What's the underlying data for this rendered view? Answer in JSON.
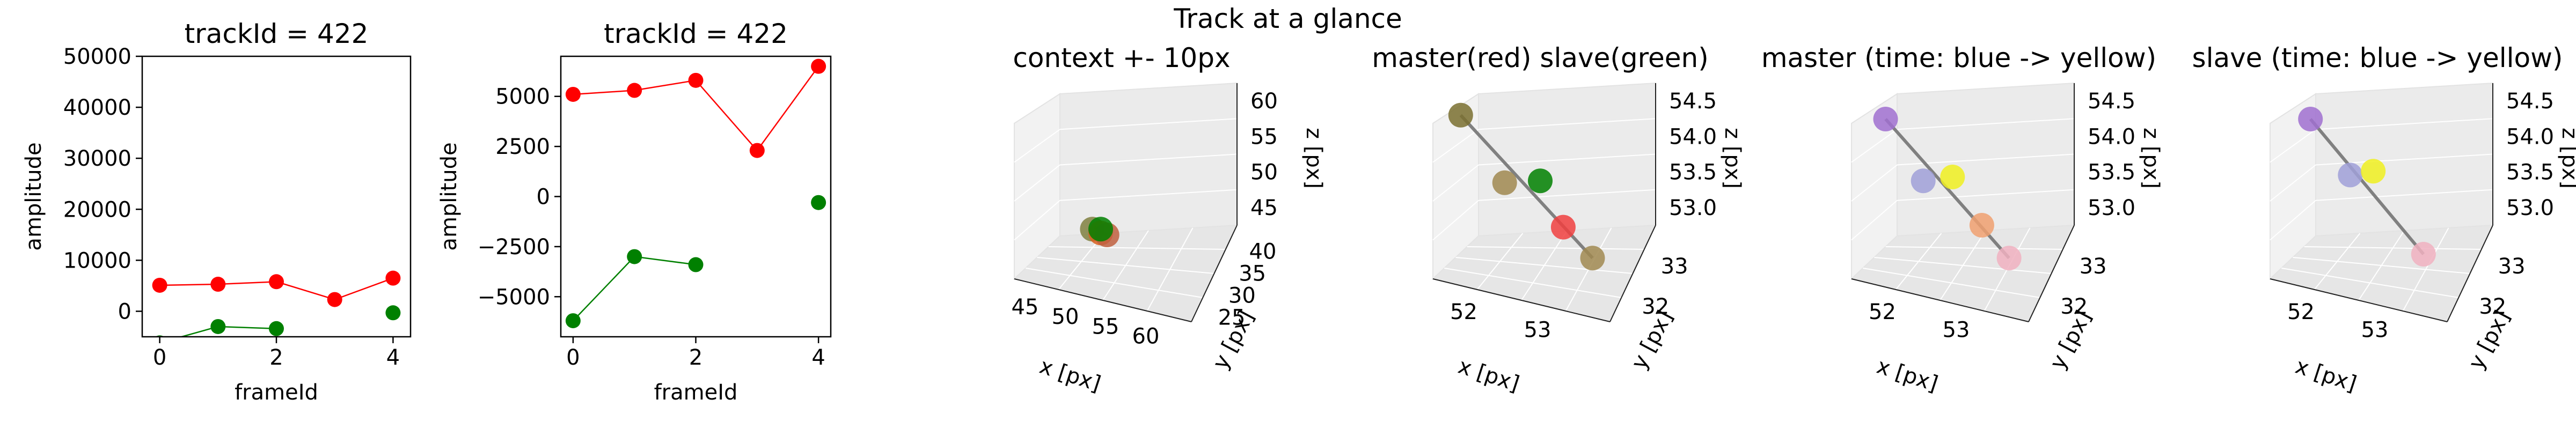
{
  "suptitle": "Track at a glance",
  "chart_data": [
    {
      "type": "line",
      "title": "trackId = 422",
      "xlabel": "frameId",
      "ylabel": "amplitude",
      "xlim": [
        -0.3,
        4.3
      ],
      "ylim": [
        -5000,
        50000
      ],
      "xticks": [
        0,
        2,
        4
      ],
      "yticks": [
        0,
        10000,
        20000,
        30000,
        40000,
        50000
      ],
      "series": [
        {
          "color": "#ff0000",
          "x": [
            0,
            1,
            2,
            3,
            4
          ],
          "y": [
            5100,
            5300,
            5800,
            2300,
            6500
          ]
        },
        {
          "color": "#008000",
          "x": [
            0,
            1,
            2,
            4
          ],
          "y": [
            -6200,
            -3000,
            -3400,
            -300
          ],
          "segments": [
            [
              0,
              1,
              2
            ]
          ]
        }
      ]
    },
    {
      "type": "line",
      "title": "trackId = 422",
      "xlabel": "frameId",
      "ylabel": "amplitude",
      "xlim": [
        -0.2,
        4.2
      ],
      "ylim": [
        -7000,
        7000
      ],
      "xticks": [
        0,
        2,
        4
      ],
      "yticks": [
        -5000,
        -2500,
        0,
        2500,
        5000
      ],
      "series": [
        {
          "color": "#ff0000",
          "x": [
            0,
            1,
            2,
            3,
            4
          ],
          "y": [
            5100,
            5300,
            5800,
            2300,
            6500
          ]
        },
        {
          "color": "#008000",
          "x": [
            0,
            1,
            2,
            4
          ],
          "y": [
            -6200,
            -3000,
            -3400,
            -300
          ],
          "segments": [
            [
              0,
              1,
              2
            ]
          ]
        }
      ]
    },
    {
      "type": "scatter3d",
      "title": "context +- 10px",
      "xlabel": "x [px]",
      "ylabel": "y [px]",
      "zlabel": "z [px]",
      "xticks": [
        "45",
        "50",
        "55",
        "60"
      ],
      "yticks": [
        "25",
        "30",
        "35",
        "40"
      ],
      "zticks": [
        "45",
        "50",
        "55",
        "60"
      ],
      "points": [
        {
          "u": 0.36,
          "v": 0.77,
          "color": "#808040"
        },
        {
          "u": 0.4,
          "v": 0.79,
          "color": "#d86020"
        },
        {
          "u": 0.43,
          "v": 0.8,
          "color": "#c06040"
        },
        {
          "u": 0.4,
          "v": 0.77,
          "color": "#008000"
        }
      ],
      "line": [
        [
          0.37,
          0.76
        ],
        [
          0.43,
          0.8
        ]
      ]
    },
    {
      "type": "scatter3d",
      "title": "master(red) slave(green)",
      "xlabel": "x [px]",
      "ylabel": "y [px]",
      "zlabel": "z [px]",
      "xticks": [
        "52",
        "53"
      ],
      "yticks": [
        "32",
        "33"
      ],
      "zticks": [
        "53.0",
        "53.5",
        "54.0",
        "54.5"
      ],
      "points": [
        {
          "u": 0.12,
          "v": 0.18,
          "color": "#7a7030"
        },
        {
          "u": 0.33,
          "v": 0.53,
          "color": "#a08850"
        },
        {
          "u": 0.5,
          "v": 0.52,
          "color": "#008000"
        },
        {
          "u": 0.61,
          "v": 0.76,
          "color": "#f04040"
        },
        {
          "u": 0.75,
          "v": 0.92,
          "color": "#a08850"
        }
      ],
      "line": [
        [
          0.12,
          0.18
        ],
        [
          0.75,
          0.92
        ]
      ]
    },
    {
      "type": "scatter3d",
      "title": "master (time: blue -> yellow)",
      "xlabel": "x [px]",
      "ylabel": "y [px]",
      "zlabel": "z [px]",
      "xticks": [
        "52",
        "53"
      ],
      "yticks": [
        "32",
        "33"
      ],
      "zticks": [
        "53.0",
        "53.5",
        "54.0",
        "54.5"
      ],
      "points": [
        {
          "u": 0.15,
          "v": 0.2,
          "color": "#a070d0"
        },
        {
          "u": 0.33,
          "v": 0.52,
          "color": "#a0a0d8"
        },
        {
          "u": 0.47,
          "v": 0.5,
          "color": "#f0f020"
        },
        {
          "u": 0.61,
          "v": 0.75,
          "color": "#f0a070"
        },
        {
          "u": 0.74,
          "v": 0.92,
          "color": "#f0b0c0"
        }
      ],
      "line": [
        [
          0.15,
          0.2
        ],
        [
          0.74,
          0.92
        ]
      ]
    },
    {
      "type": "scatter3d",
      "title": "slave (time: blue -> yellow)",
      "xlabel": "x [px]",
      "ylabel": "y [px]",
      "zlabel": "z [px]",
      "xticks": [
        "52",
        "53"
      ],
      "yticks": [
        "32",
        "33"
      ],
      "zticks": [
        "53.0",
        "53.5",
        "54.0",
        "54.5"
      ],
      "points": [
        {
          "u": 0.18,
          "v": 0.2,
          "color": "#a070d0"
        },
        {
          "u": 0.37,
          "v": 0.49,
          "color": "#a0a0d8"
        },
        {
          "u": 0.48,
          "v": 0.47,
          "color": "#f0f020"
        },
        {
          "u": 0.72,
          "v": 0.9,
          "color": "#f0b0c0"
        }
      ],
      "line": [
        [
          0.18,
          0.2
        ],
        [
          0.72,
          0.9
        ]
      ]
    }
  ]
}
